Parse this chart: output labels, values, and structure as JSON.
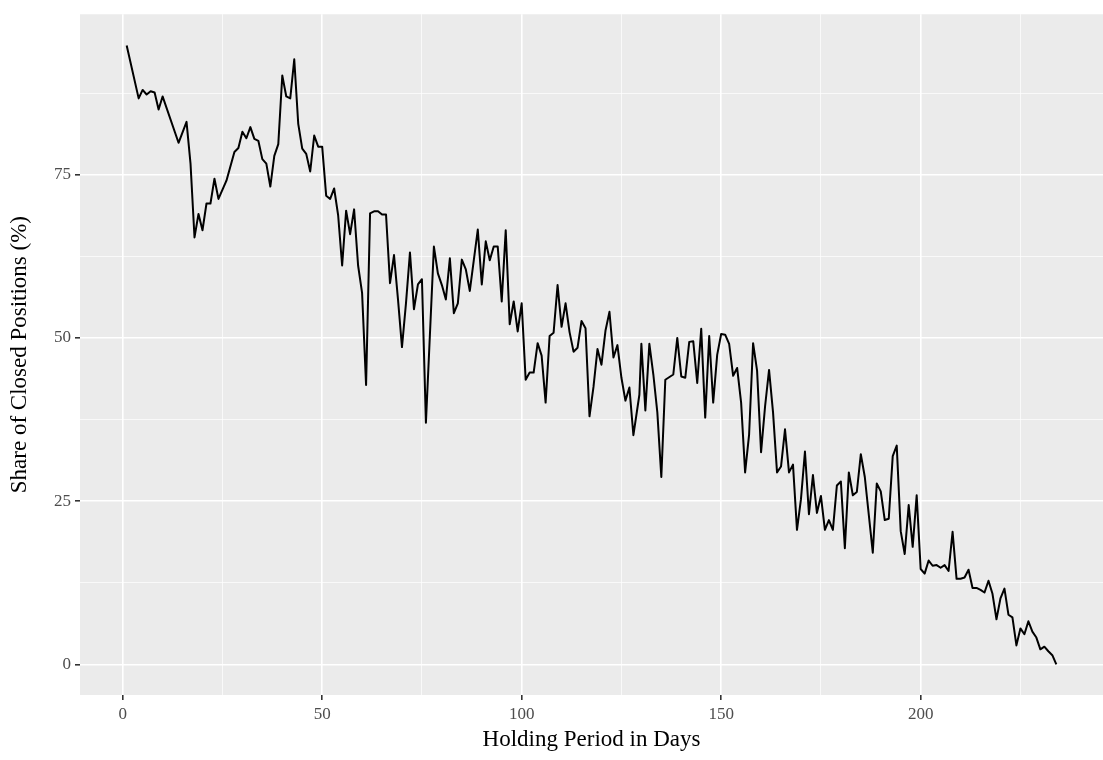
{
  "chart_data": {
    "type": "line",
    "xlabel": "Holding Period in Days",
    "ylabel": "Share of Closed Positions (%)",
    "x": [
      1,
      4,
      5,
      6,
      7,
      8,
      9,
      10,
      14,
      16,
      17,
      18,
      19,
      20,
      21,
      22,
      23,
      24,
      26,
      28,
      29,
      30,
      31,
      32,
      33,
      34,
      35,
      36,
      37,
      38,
      39,
      40,
      41,
      42,
      43,
      44,
      45,
      46,
      47,
      48,
      49,
      50,
      51,
      52,
      53,
      54,
      55,
      56,
      57,
      58,
      59,
      60,
      61,
      62,
      63,
      64,
      65,
      66,
      67,
      68,
      69,
      70,
      71,
      72,
      73,
      74,
      75,
      76,
      78,
      79,
      80,
      81,
      82,
      83,
      84,
      85,
      86,
      87,
      89,
      90,
      91,
      92,
      93,
      94,
      95,
      96,
      97,
      98,
      99,
      100,
      101,
      102,
      103,
      104,
      105,
      106,
      107,
      108,
      109,
      110,
      111,
      112,
      113,
      114,
      115,
      116,
      117,
      118,
      119,
      120,
      121,
      122,
      123,
      124,
      125,
      126,
      127,
      128,
      129.5,
      130,
      131,
      132,
      133,
      134,
      135,
      136,
      138,
      139,
      140,
      141,
      142,
      143,
      144,
      145,
      146,
      147,
      148,
      149,
      150,
      151,
      152,
      153,
      154,
      155,
      156,
      157,
      158,
      159,
      160,
      161,
      162,
      163,
      164,
      165,
      166,
      167,
      168,
      169,
      170,
      171,
      172,
      173,
      174,
      175,
      176,
      177,
      178,
      179,
      180,
      181,
      182,
      183,
      184,
      185,
      186,
      188,
      189,
      190,
      191,
      192,
      193,
      194,
      195,
      196,
      197,
      198,
      199,
      200,
      201,
      202,
      203,
      204,
      205,
      206,
      207,
      208,
      209,
      210,
      211,
      212,
      213,
      214,
      215,
      216,
      217,
      218,
      219,
      220,
      221,
      222,
      223,
      224,
      225,
      226,
      227,
      228,
      229,
      230,
      231,
      232,
      233,
      234
    ],
    "values": [
      94.8,
      86.7,
      88,
      87.3,
      87.8,
      87.6,
      85,
      87,
      79.9,
      83.1,
      76.7,
      65.4,
      69,
      66.5,
      70.6,
      70.6,
      74.4,
      71.3,
      74.1,
      78.5,
      79.1,
      81.6,
      80.6,
      82.3,
      80.5,
      80.2,
      77.4,
      76.7,
      73.2,
      77.9,
      79.7,
      90.2,
      87,
      86.7,
      92.7,
      82.8,
      79,
      78.2,
      75.5,
      81,
      79.3,
      79.3,
      71.8,
      71.3,
      72.9,
      68.8,
      61.1,
      69.5,
      65.9,
      69.7,
      61.1,
      56.9,
      42.8,
      69.1,
      69.4,
      69.4,
      68.9,
      68.9,
      58.4,
      62.7,
      55.9,
      48.6,
      55.3,
      63.1,
      54.4,
      58.2,
      59,
      37,
      64,
      59.9,
      58.1,
      55.9,
      62.2,
      53.8,
      55.3,
      62,
      60.5,
      57.2,
      66.6,
      58.2,
      64.8,
      61.9,
      64,
      64,
      55.6,
      66.5,
      52.1,
      55.6,
      51,
      55.3,
      43.6,
      44.7,
      44.7,
      49.2,
      47.3,
      40.1,
      50.3,
      50.8,
      58.1,
      51.7,
      55.3,
      50.9,
      47.9,
      48.5,
      52.6,
      51.5,
      38,
      42.5,
      48.3,
      45.9,
      51.1,
      54,
      47,
      48.9,
      43.9,
      40.4,
      42.4,
      35.1,
      41.3,
      49.1,
      38.9,
      49.1,
      44.4,
      38.6,
      28.7,
      43.6,
      44.4,
      50,
      44.1,
      43.9,
      49.4,
      49.5,
      43.1,
      51.4,
      37.8,
      50.3,
      40.1,
      47.4,
      50.6,
      50.5,
      49.1,
      44.2,
      45.4,
      40.1,
      29.4,
      35.2,
      49.2,
      45,
      32.5,
      39.5,
      45.1,
      38.6,
      29.4,
      30.3,
      36,
      29.4,
      30.6,
      20.6,
      25.3,
      32.6,
      23,
      29,
      23.2,
      25.8,
      20.6,
      22.1,
      20.6,
      27.4,
      28,
      17.8,
      29.4,
      25.9,
      26.4,
      32.2,
      28.7,
      17.1,
      27.7,
      26.5,
      22.1,
      22.3,
      31.9,
      33.5,
      20.4,
      16.9,
      24.4,
      18,
      25.9,
      14.6,
      13.9,
      15.9,
      15.1,
      15.2,
      14.8,
      15.2,
      14.3,
      20.3,
      13.1,
      13.1,
      13.3,
      14.5,
      11.7,
      11.7,
      11.4,
      11,
      12.8,
      10.8,
      6.9,
      10.1,
      11.6,
      7.6,
      7.2,
      2.9,
      5.5,
      4.6,
      6.6,
      5,
      4.1,
      2.3,
      2.7,
      2,
      1.4,
      0
    ],
    "color": "#000000",
    "xlim": [
      -10.7,
      245.7
    ],
    "ylim": [
      -4.7,
      99.6
    ],
    "xticks": [
      0,
      {
        "value": 25,
        "label": null
      },
      50,
      {
        "value": 75,
        "label": null
      },
      100,
      {
        "value": 125,
        "label": null
      },
      150,
      {
        "value": 175,
        "label": null
      },
      200,
      {
        "value": 225,
        "label": null
      }
    ],
    "yticks": [
      0,
      {
        "value": 12.5,
        "label": null
      },
      25,
      {
        "value": 37.5,
        "label": null
      },
      50,
      {
        "value": 62.5,
        "label": null
      },
      75,
      {
        "value": 87.5,
        "label": null
      }
    ],
    "grid": true,
    "legend": false,
    "marker": "none",
    "line_style": "solid"
  }
}
